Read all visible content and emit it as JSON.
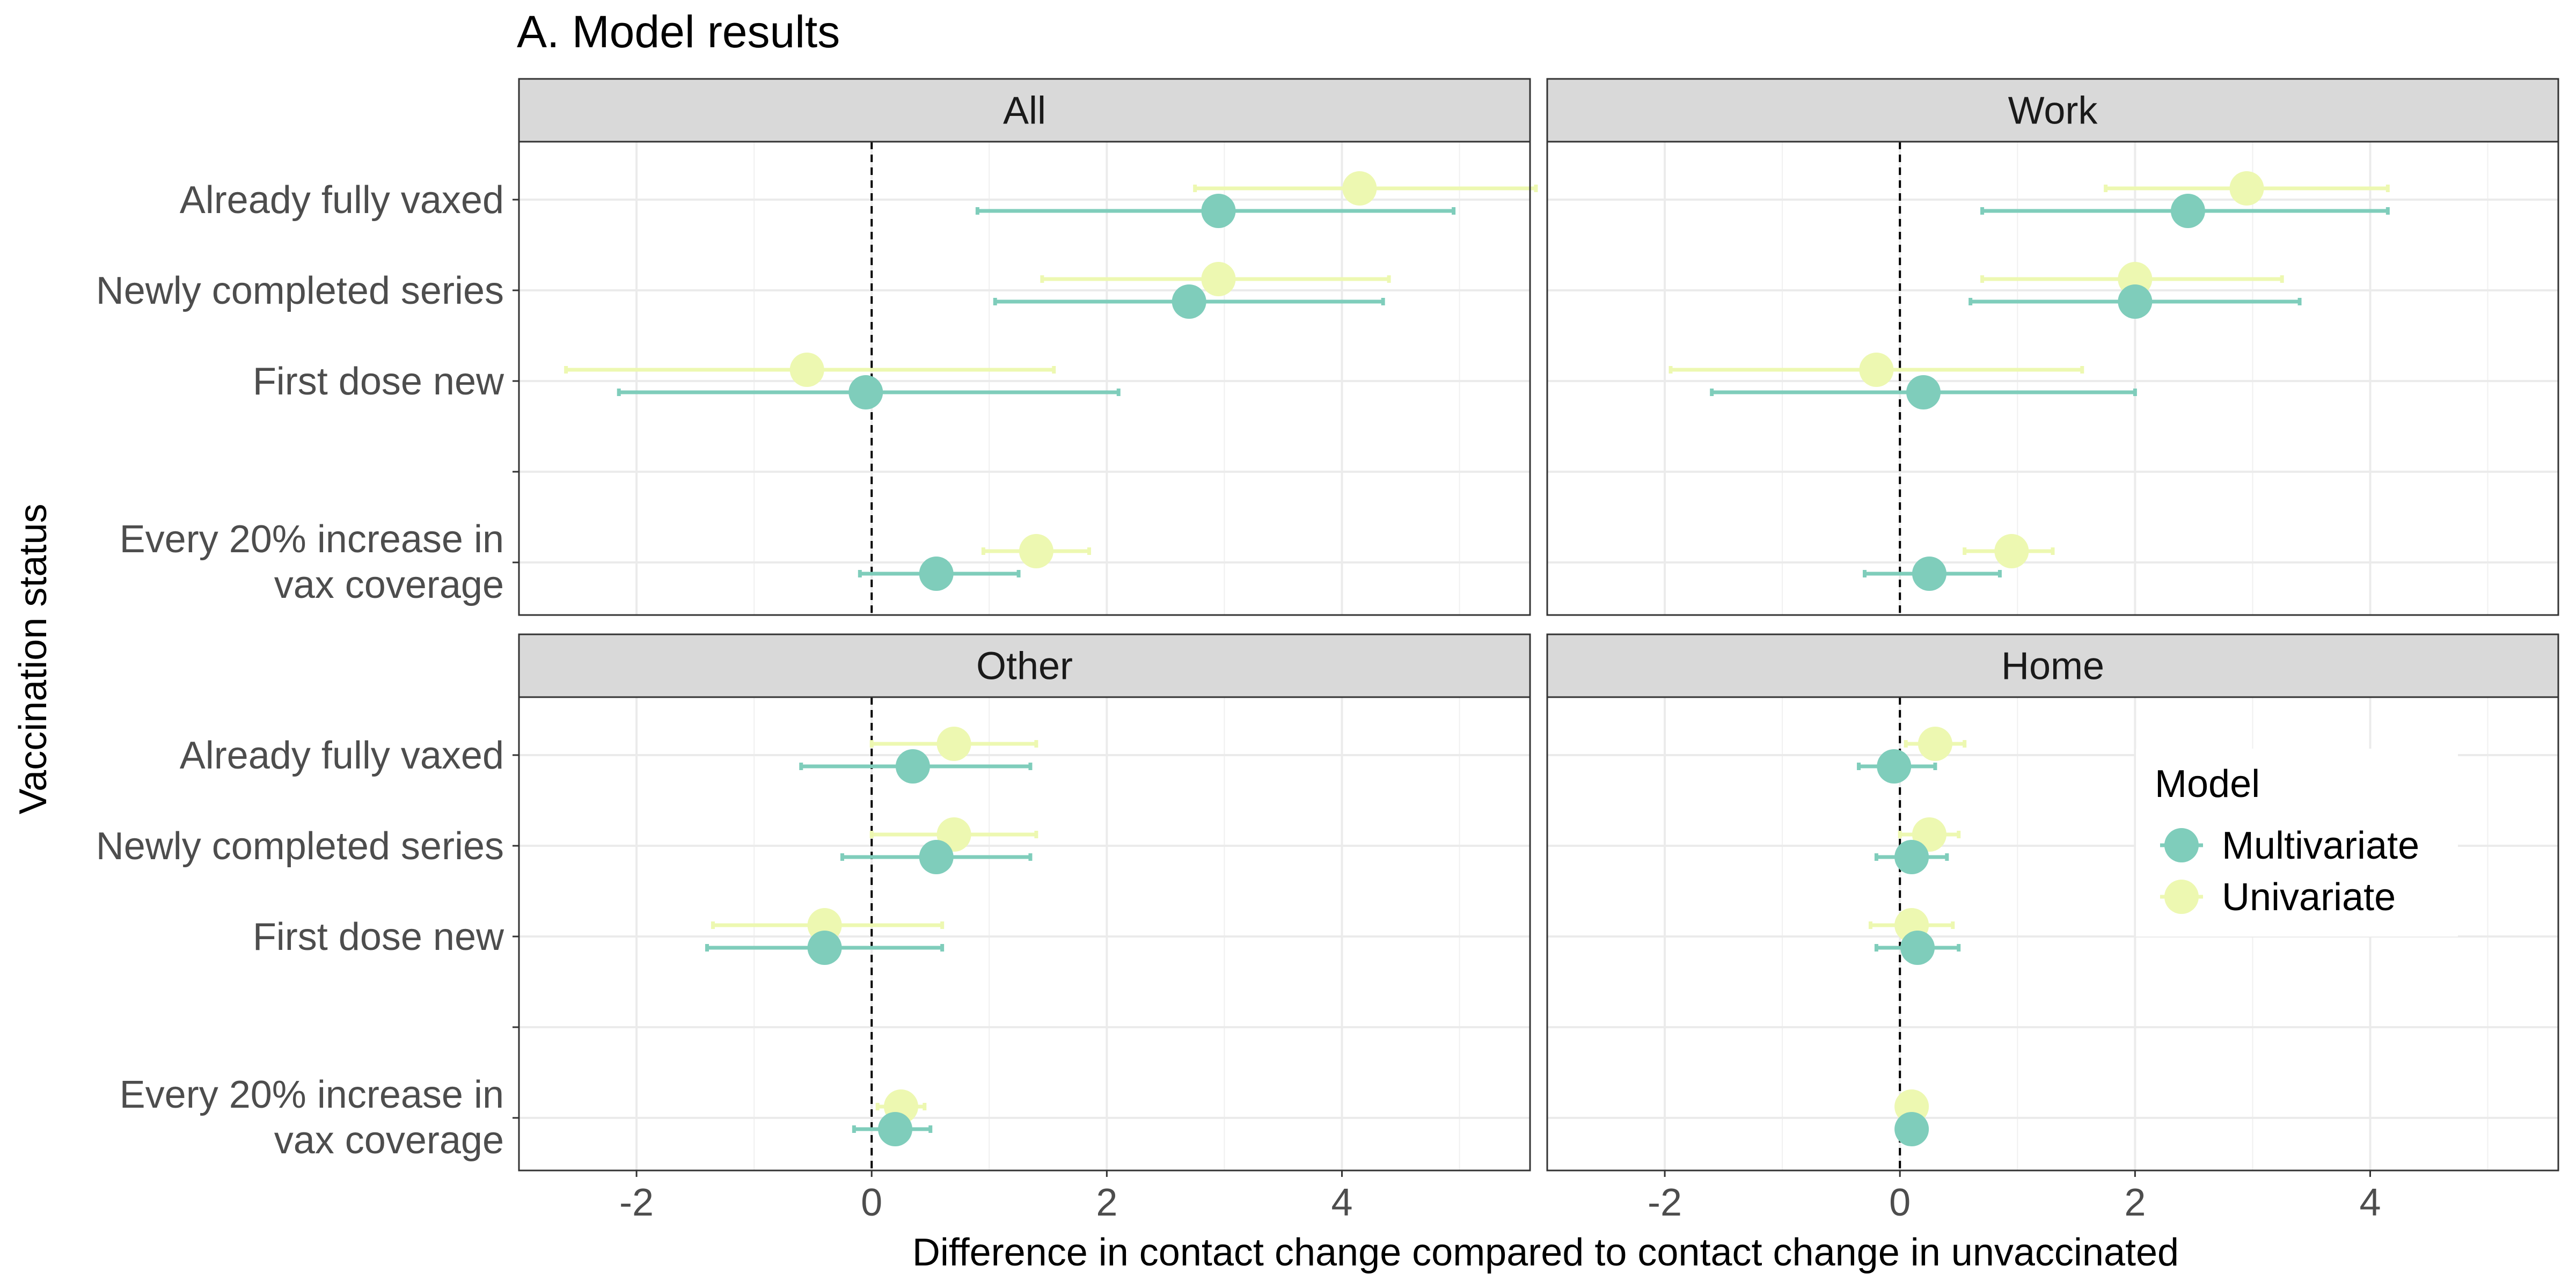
{
  "chart_data": {
    "type": "scatter",
    "subtype": "forest-plot-faceted",
    "title": "A. Model results",
    "xlabel": "Difference in contact change compared to contact change in unvaccinated",
    "ylabel": "Vaccination status",
    "xlim": [
      -3.0,
      5.6
    ],
    "xticks": [
      -2,
      0,
      2,
      4
    ],
    "xtick_labels": [
      "-2",
      "0",
      "2",
      "4"
    ],
    "reference_line": 0,
    "reference_line_style": "dashed",
    "grid": true,
    "categories": [
      {
        "key": "already",
        "label": "Already fully vaxed"
      },
      {
        "key": "newly",
        "label": "Newly completed series"
      },
      {
        "key": "first",
        "label": "First dose new"
      },
      {
        "key": "blank",
        "label": ""
      },
      {
        "key": "every",
        "label": "Every 20% increase in\nvax coverage"
      }
    ],
    "legend": {
      "title": "Model",
      "placement": "right-inside",
      "entries": [
        {
          "name": "Multivariate",
          "color": "#7fcdbb"
        },
        {
          "name": "Univariate",
          "color": "#edf8b1"
        }
      ]
    },
    "series_colors": {
      "Multivariate": "#7fcdbb",
      "Univariate": "#edf8b1"
    },
    "panels": [
      {
        "name": "All",
        "data": {
          "Univariate": {
            "already": {
              "est": 4.15,
              "lo": 2.75,
              "hi": 5.65
            },
            "newly": {
              "est": 2.95,
              "lo": 1.45,
              "hi": 4.4
            },
            "first": {
              "est": -0.55,
              "lo": -2.6,
              "hi": 1.55
            },
            "every": {
              "est": 1.4,
              "lo": 0.95,
              "hi": 1.85
            }
          },
          "Multivariate": {
            "already": {
              "est": 2.95,
              "lo": 0.9,
              "hi": 4.95
            },
            "newly": {
              "est": 2.7,
              "lo": 1.05,
              "hi": 4.35
            },
            "first": {
              "est": -0.05,
              "lo": -2.15,
              "hi": 2.1
            },
            "every": {
              "est": 0.55,
              "lo": -0.1,
              "hi": 1.25
            }
          }
        }
      },
      {
        "name": "Work",
        "data": {
          "Univariate": {
            "already": {
              "est": 2.95,
              "lo": 1.75,
              "hi": 4.15
            },
            "newly": {
              "est": 2.0,
              "lo": 0.7,
              "hi": 3.25
            },
            "first": {
              "est": -0.2,
              "lo": -1.95,
              "hi": 1.55
            },
            "every": {
              "est": 0.95,
              "lo": 0.55,
              "hi": 1.3
            }
          },
          "Multivariate": {
            "already": {
              "est": 2.45,
              "lo": 0.7,
              "hi": 4.15
            },
            "newly": {
              "est": 2.0,
              "lo": 0.6,
              "hi": 3.4
            },
            "first": {
              "est": 0.2,
              "lo": -1.6,
              "hi": 2.0
            },
            "every": {
              "est": 0.25,
              "lo": -0.3,
              "hi": 0.85
            }
          }
        }
      },
      {
        "name": "Other",
        "data": {
          "Univariate": {
            "already": {
              "est": 0.7,
              "lo": 0.0,
              "hi": 1.4
            },
            "newly": {
              "est": 0.7,
              "lo": 0.0,
              "hi": 1.4
            },
            "first": {
              "est": -0.4,
              "lo": -1.35,
              "hi": 0.6
            },
            "every": {
              "est": 0.25,
              "lo": 0.05,
              "hi": 0.45
            }
          },
          "Multivariate": {
            "already": {
              "est": 0.35,
              "lo": -0.6,
              "hi": 1.35
            },
            "newly": {
              "est": 0.55,
              "lo": -0.25,
              "hi": 1.35
            },
            "first": {
              "est": -0.4,
              "lo": -1.4,
              "hi": 0.6
            },
            "every": {
              "est": 0.2,
              "lo": -0.15,
              "hi": 0.5
            }
          }
        }
      },
      {
        "name": "Home",
        "data": {
          "Univariate": {
            "already": {
              "est": 0.3,
              "lo": 0.05,
              "hi": 0.55
            },
            "newly": {
              "est": 0.25,
              "lo": 0.0,
              "hi": 0.5
            },
            "first": {
              "est": 0.1,
              "lo": -0.25,
              "hi": 0.45
            },
            "every": {
              "est": 0.1,
              "lo": 0.0,
              "hi": 0.2
            }
          },
          "Multivariate": {
            "already": {
              "est": -0.05,
              "lo": -0.35,
              "hi": 0.3
            },
            "newly": {
              "est": 0.1,
              "lo": -0.2,
              "hi": 0.4
            },
            "first": {
              "est": 0.15,
              "lo": -0.2,
              "hi": 0.5
            },
            "every": {
              "est": 0.1,
              "lo": 0.05,
              "hi": 0.15
            }
          }
        }
      }
    ]
  }
}
